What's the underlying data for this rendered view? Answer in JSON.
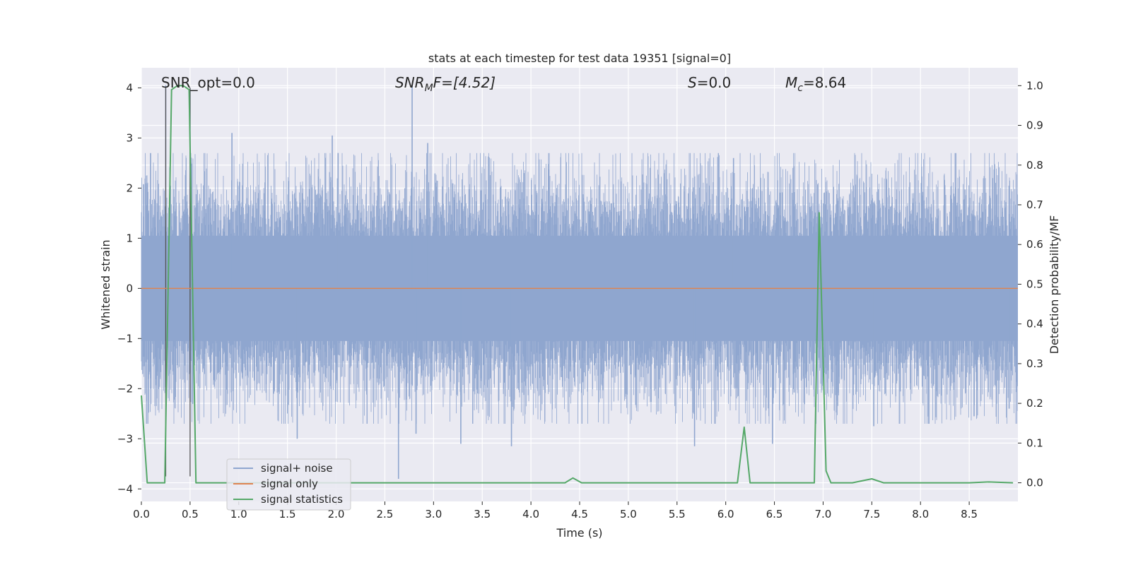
{
  "chart_data": {
    "type": "line",
    "title": "stats at each timestep for test data 19351 [signal=0]",
    "xlabel": "Time (s)",
    "ylabel": "Whitened strain",
    "ylabel_right": "Detection probability/MF",
    "xlim": [
      0.0,
      9.0
    ],
    "ylim": [
      -4.25,
      4.4
    ],
    "ylim_right": [
      -0.047,
      1.045
    ],
    "x_ticks": [
      "0.0",
      "0.5",
      "1.0",
      "1.5",
      "2.0",
      "2.5",
      "3.0",
      "3.5",
      "4.0",
      "4.5",
      "5.0",
      "5.5",
      "6.0",
      "6.5",
      "7.0",
      "7.5",
      "8.0",
      "8.5"
    ],
    "y_ticks": [
      "−4",
      "−3",
      "−2",
      "−1",
      "0",
      "1",
      "2",
      "3",
      "4"
    ],
    "y_right_ticks": [
      "0.0",
      "0.1",
      "0.2",
      "0.3",
      "0.4",
      "0.5",
      "0.6",
      "0.7",
      "0.8",
      "0.9",
      "1.0"
    ],
    "grid": true,
    "legend_position": "lower-left",
    "annotations": {
      "snr_opt": "SNR_opt=0.0",
      "snr_mf_main": "SNR",
      "snr_mf_sub": "M",
      "snr_mf_rest": "F=[4.52]",
      "s_main": "S",
      "s_rest": "=0.0",
      "mc_main": "M",
      "mc_sub": "c",
      "mc_rest": "=8.64"
    },
    "series": [
      {
        "name": "signal+ noise",
        "color": "#8fa6cf",
        "noise_band": {
          "core_abs": 1.05,
          "typical_abs": 2.0
        },
        "spikes": [
          {
            "x": 0.25,
            "y": 4.05
          },
          {
            "x": 0.5,
            "y": 4.0
          },
          {
            "x": 0.93,
            "y": 3.1
          },
          {
            "x": 1.6,
            "y": -3.0
          },
          {
            "x": 1.96,
            "y": 3.05
          },
          {
            "x": 2.02,
            "y": 2.7
          },
          {
            "x": 2.64,
            "y": -3.8
          },
          {
            "x": 2.78,
            "y": 4.05
          },
          {
            "x": 2.82,
            "y": -2.9
          },
          {
            "x": 2.94,
            "y": 2.9
          },
          {
            "x": 3.28,
            "y": -3.1
          },
          {
            "x": 3.8,
            "y": -3.15
          },
          {
            "x": 5.68,
            "y": -3.15
          },
          {
            "x": 6.08,
            "y": 2.6
          },
          {
            "x": 6.48,
            "y": -3.1
          },
          {
            "x": 7.52,
            "y": -2.75
          },
          {
            "x": 8.55,
            "y": -2.55
          },
          {
            "x": 8.91,
            "y": -2.4
          }
        ]
      },
      {
        "name": "signal only",
        "color": "#dd8452",
        "x": [
          0.0,
          9.0
        ],
        "y": [
          0.0,
          0.0
        ]
      },
      {
        "name": "signal statistics",
        "color": "#55a868",
        "axis": "right",
        "x": [
          0.0,
          0.06,
          0.12,
          0.18,
          0.24,
          0.31,
          0.37,
          0.43,
          0.49,
          0.56,
          0.62,
          0.68,
          0.74,
          4.35,
          4.43,
          4.52,
          6.08,
          6.12,
          6.19,
          6.25,
          6.31,
          6.84,
          6.91,
          6.96,
          7.03,
          7.08,
          7.3,
          7.5,
          7.62,
          8.5,
          8.7,
          8.95
        ],
        "y": [
          0.22,
          0.0,
          0.0,
          0.0,
          0.0,
          0.99,
          1.0,
          1.0,
          0.99,
          0.0,
          0.0,
          0.0,
          0.0,
          0.0,
          0.012,
          0.0,
          0.0,
          0.0,
          0.14,
          0.0,
          0.0,
          0.0,
          0.0,
          0.68,
          0.03,
          0.0,
          0.0,
          0.01,
          0.0,
          0.0,
          0.002,
          0.0
        ]
      }
    ],
    "vertical_lines": [
      0.25,
      0.5
    ],
    "vertical_line_color": "#555555"
  }
}
